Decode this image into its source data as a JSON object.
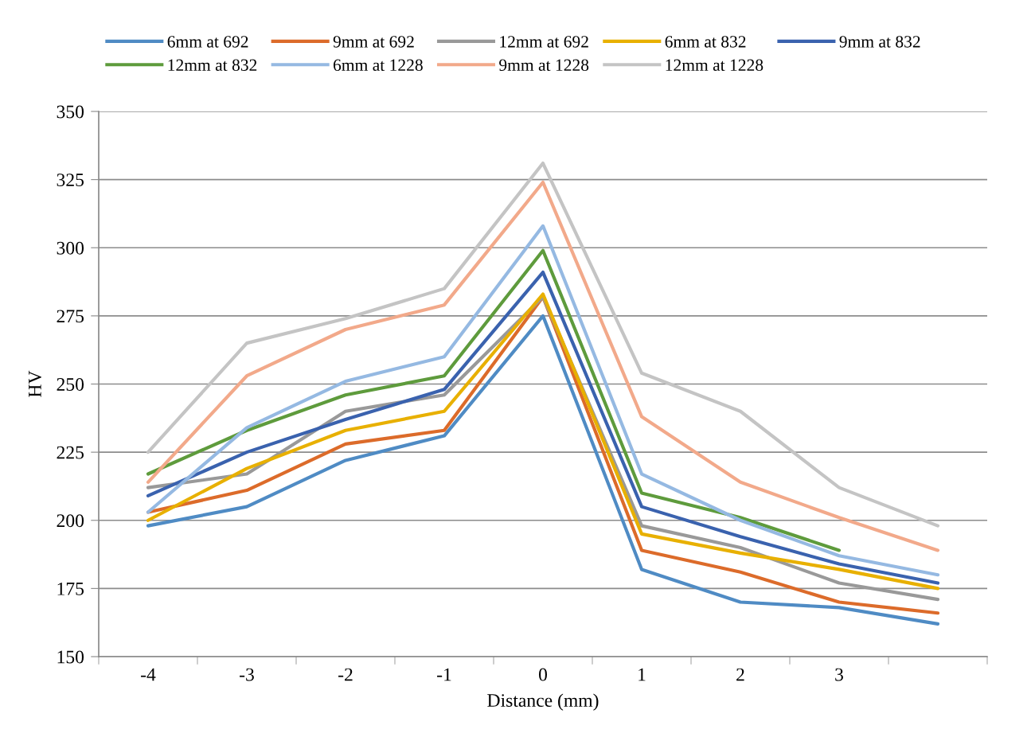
{
  "chart_data": {
    "type": "line",
    "xlabel": "Distance (mm)",
    "ylabel": "HV",
    "categories": [
      "-4",
      "-3",
      "-2",
      "-1",
      "0",
      "1",
      "2",
      "3",
      null
    ],
    "ylim": [
      150,
      350
    ],
    "yticks": [
      150,
      175,
      200,
      225,
      250,
      275,
      300,
      325,
      350
    ],
    "grid": "y",
    "legend": "top",
    "marker": "none",
    "line_style": "solid",
    "series": [
      {
        "name": "6mm at 692",
        "color": "#4f8bc4",
        "values": [
          198,
          205,
          222,
          231,
          275,
          182,
          170,
          168,
          162
        ]
      },
      {
        "name": "9mm at 692",
        "color": "#dc6b2a",
        "values": [
          203,
          211,
          228,
          233,
          282,
          189,
          181,
          170,
          166
        ]
      },
      {
        "name": "12mm at 692",
        "color": "#999999",
        "values": [
          212,
          217,
          240,
          246,
          282,
          198,
          190,
          177,
          171
        ]
      },
      {
        "name": "6mm at 832",
        "color": "#e8b000",
        "values": [
          200,
          219,
          233,
          240,
          283,
          195,
          188,
          182,
          175
        ]
      },
      {
        "name": "9mm at 832",
        "color": "#3a62ae",
        "values": [
          209,
          225,
          237,
          248,
          291,
          205,
          194,
          184,
          177
        ]
      },
      {
        "name": "12mm at 832",
        "color": "#5e9b3c",
        "values": [
          217,
          233,
          246,
          253,
          299,
          210,
          201,
          189,
          null
        ]
      },
      {
        "name": "6mm at 1228",
        "color": "#95b9e2",
        "values": [
          203,
          234,
          251,
          260,
          308,
          217,
          200,
          187,
          180
        ]
      },
      {
        "name": "9mm at 1228",
        "color": "#f2a98a",
        "values": [
          214,
          253,
          270,
          279,
          324,
          238,
          214,
          201,
          189
        ]
      },
      {
        "name": "12mm at 1228",
        "color": "#c4c4c4",
        "values": [
          225,
          265,
          274,
          285,
          331,
          254,
          240,
          212,
          198
        ]
      }
    ]
  }
}
